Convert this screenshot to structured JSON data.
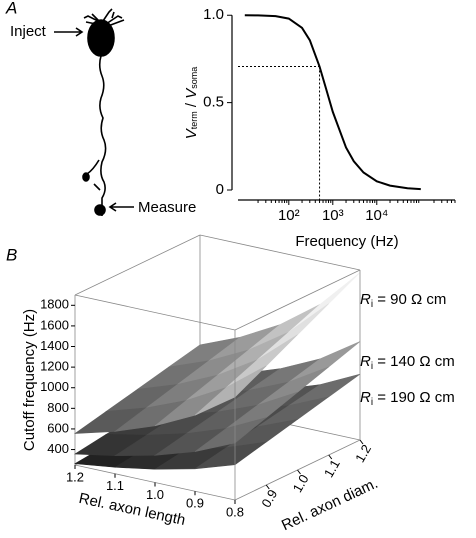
{
  "panel_labels": [
    "A",
    "B"
  ],
  "neuron": {
    "inject": "Inject",
    "measure": "Measure"
  },
  "chart_data": [
    {
      "type": "line",
      "x": [
        10,
        20,
        50,
        100,
        200,
        300,
        500,
        700,
        1000,
        2000,
        3000,
        5000,
        10000,
        20000,
        50000,
        100000
      ],
      "values": [
        1.0,
        0.999,
        0.995,
        0.981,
        0.928,
        0.857,
        0.707,
        0.581,
        0.447,
        0.243,
        0.164,
        0.1,
        0.05,
        0.025,
        0.01,
        0.005
      ],
      "color": "#000000",
      "cutoff": {
        "x": 500,
        "y": 0.707
      },
      "xlabel": "Frequency (Hz)",
      "ylabel": {
        "v1": "V",
        "sub1": "term",
        "sep": " / ",
        "v2": "V",
        "sub2": "soma"
      },
      "log_x": true,
      "xlim": [
        7,
        600000
      ],
      "xticks": [
        {
          "value": 100,
          "label": "10²"
        },
        {
          "value": 1000,
          "label": "10³"
        },
        {
          "value": 10000,
          "label": "10⁴"
        }
      ],
      "ylim": [
        0,
        1.03
      ],
      "yticks": [
        0,
        0.5,
        {
          "value": 1,
          "label": "1.0"
        }
      ]
    },
    {
      "type": "surface3d",
      "zlabel": "Cutoff frequency (Hz)",
      "xlabel": "Rel. axon length",
      "ylabel": "Rel. axon diam.",
      "x": [
        0.8,
        0.9,
        1.0,
        1.1,
        1.2
      ],
      "y": [
        0.8,
        0.9,
        1.0,
        1.1,
        1.2
      ],
      "xlim": [
        0.8,
        1.2
      ],
      "ylim": [
        0.8,
        1.2
      ],
      "zlim": [
        250,
        1900
      ],
      "xticks": [
        1.2,
        1.1,
        {
          "value": 1,
          "label": "1.0"
        },
        0.9,
        0.8
      ],
      "yticks": [
        0.9,
        {
          "value": 1,
          "label": "1.0"
        },
        1.1,
        1.2
      ],
      "zticks": [
        400,
        600,
        800,
        1000,
        1200,
        1400,
        1600,
        1800
      ],
      "series": [
        {
          "name": "R",
          "name_sub": "i",
          "name_rest": " = 190 Ω cm",
          "values": [
            [
              593,
              667,
              741,
              815,
              889
            ],
            [
              468,
              527,
              585,
              644,
              702
            ],
            [
              379,
              427,
              474,
              521,
              569
            ],
            [
              313,
              353,
              392,
              431,
              470
            ],
            [
              263,
              296,
              329,
              362,
              395
            ]
          ]
        },
        {
          "name": "R",
          "name_sub": "i",
          "name_rest": " = 140 Ω cm",
          "values": [
            [
              804,
              904,
              1005,
              1105,
              1206
            ],
            [
              635,
              714,
              794,
              873,
              952
            ],
            [
              514,
              579,
              643,
              707,
              772
            ],
            [
              425,
              478,
              531,
              585,
              638
            ],
            [
              357,
              402,
              446,
              491,
              536
            ]
          ]
        },
        {
          "name": "R",
          "name_sub": "i",
          "name_rest": " = 90 Ω cm",
          "values": [
            [
              1250,
              1406,
              1563,
              1719,
              1875
            ],
            [
              988,
              1111,
              1235,
              1358,
              1481
            ],
            [
              800,
              900,
              1000,
              1100,
              1200
            ],
            [
              661,
              744,
              826,
              909,
              992
            ],
            [
              556,
              625,
              694,
              764,
              833
            ]
          ]
        }
      ]
    }
  ]
}
